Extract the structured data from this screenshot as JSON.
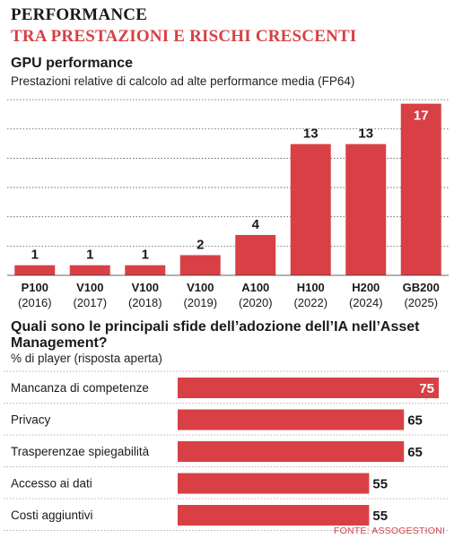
{
  "header": {
    "kicker": "PERFORMANCE",
    "headline": "TRA PRESTAZIONI E RISCHI CRESCENTI"
  },
  "source": "FONTE: ASSOGESTIONI",
  "colors": {
    "accent": "#d84045",
    "grid": "#555555"
  },
  "chart_data": [
    {
      "type": "bar",
      "title": "GPU performance",
      "subtitle": "Prestazioni relative di calcolo ad alte performance media (FP64)",
      "categories": [
        "P100",
        "V100",
        "V100",
        "V100",
        "A100",
        "H100",
        "H200",
        "GB200"
      ],
      "years": [
        "(2016)",
        "(2017)",
        "(2018)",
        "(2019)",
        "(2020)",
        "(2022)",
        "(2024)",
        "(2025)"
      ],
      "values": [
        1,
        1,
        1,
        2,
        4,
        13,
        13,
        17
      ],
      "ylim": [
        0,
        17.5
      ],
      "grid": true
    },
    {
      "type": "bar",
      "orientation": "horizontal",
      "title": "Quali sono le principali sfide dell’adozione dell’IA nell’Asset Management?",
      "subtitle": "% di player (risposta aperta)",
      "categories": [
        "Mancanza di competenze",
        "Privacy",
        "Trasperenzae spiegabilità",
        "Accesso ai dati",
        "Costi aggiuntivi"
      ],
      "values": [
        75,
        65,
        65,
        55,
        55
      ],
      "xlim": [
        0,
        75
      ]
    }
  ]
}
